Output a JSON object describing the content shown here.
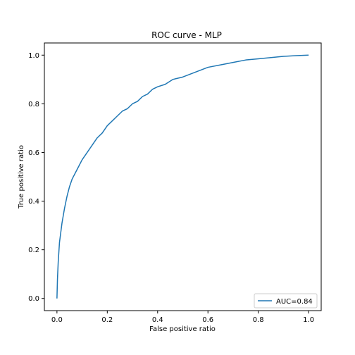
{
  "chart_data": {
    "type": "line",
    "title": "ROC curve - MLP",
    "xlabel": "False positive ratio",
    "ylabel": "True positive ratio",
    "xlim": [
      -0.05,
      1.05
    ],
    "ylim": [
      -0.05,
      1.05
    ],
    "x_ticks": [
      0.0,
      0.2,
      0.4,
      0.6,
      0.8,
      1.0
    ],
    "y_ticks": [
      0.0,
      0.2,
      0.4,
      0.6,
      0.8,
      1.0
    ],
    "x_tick_labels": [
      "0.0",
      "0.2",
      "0.4",
      "0.6",
      "0.8",
      "1.0"
    ],
    "y_tick_labels": [
      "0.0",
      "0.2",
      "0.4",
      "0.6",
      "0.8",
      "1.0"
    ],
    "grid": false,
    "legend_position": "lower-right",
    "series": [
      {
        "name": "AUC=0.84",
        "color": "#1f77b4",
        "x": [
          0.0,
          0.002,
          0.005,
          0.01,
          0.02,
          0.03,
          0.04,
          0.05,
          0.06,
          0.08,
          0.1,
          0.12,
          0.14,
          0.16,
          0.18,
          0.2,
          0.22,
          0.24,
          0.26,
          0.28,
          0.3,
          0.32,
          0.34,
          0.36,
          0.38,
          0.4,
          0.43,
          0.46,
          0.5,
          0.55,
          0.6,
          0.65,
          0.7,
          0.75,
          0.8,
          0.85,
          0.9,
          0.95,
          1.0
        ],
        "y": [
          0.0,
          0.08,
          0.15,
          0.23,
          0.31,
          0.37,
          0.42,
          0.46,
          0.49,
          0.53,
          0.57,
          0.6,
          0.63,
          0.66,
          0.68,
          0.71,
          0.73,
          0.75,
          0.77,
          0.78,
          0.8,
          0.81,
          0.83,
          0.84,
          0.86,
          0.87,
          0.88,
          0.9,
          0.91,
          0.93,
          0.95,
          0.96,
          0.97,
          0.98,
          0.985,
          0.99,
          0.995,
          0.998,
          1.0
        ]
      }
    ]
  }
}
